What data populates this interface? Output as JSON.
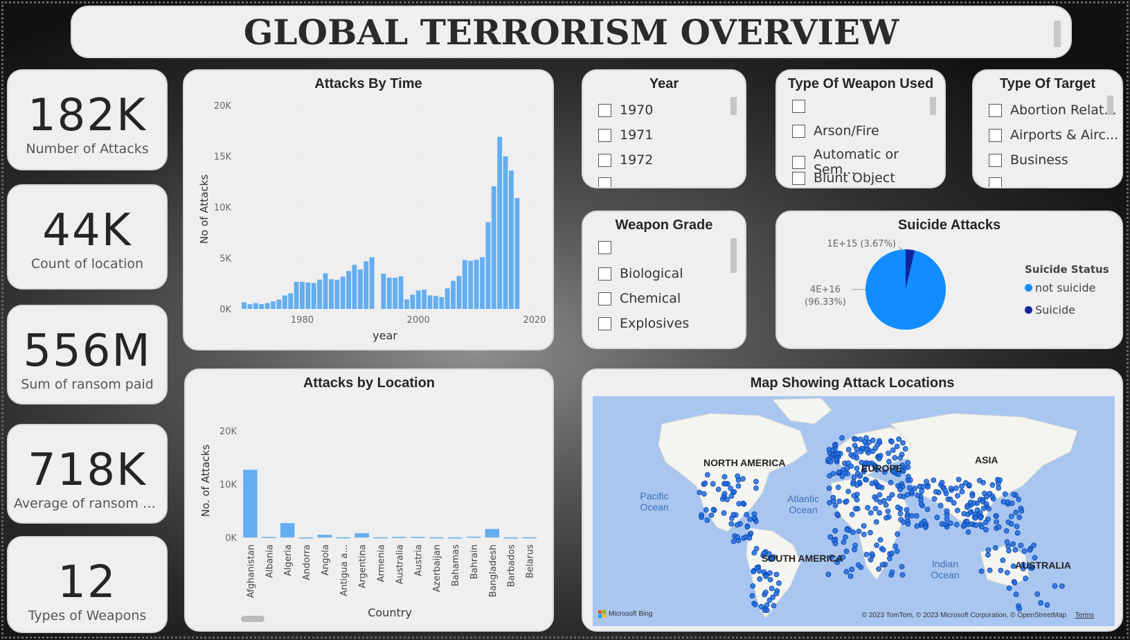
{
  "title": "GLOBAL TERRORISM OVERVIEW",
  "kpis": [
    {
      "value": "182K",
      "label": "Number of Attacks"
    },
    {
      "value": "44K",
      "label": "Count of location"
    },
    {
      "value": "556M",
      "label": "Sum of ransom paid"
    },
    {
      "value": "718K",
      "label": "Average of ransom p..."
    },
    {
      "value": "12",
      "label": "Types of Weapons"
    }
  ],
  "slicers": {
    "year": {
      "title": "Year",
      "items": [
        "1970",
        "1971",
        "1972"
      ]
    },
    "weapon_type": {
      "title": "Type Of Weapon Used",
      "items": [
        "",
        "Arson/Fire",
        "Automatic or Sem...",
        "Blunt Object"
      ]
    },
    "target_type": {
      "title": "Type Of Target",
      "items": [
        "Abortion Relat...",
        "Airports & Airc...",
        "Business"
      ]
    },
    "weapon_grade": {
      "title": "Weapon Grade",
      "items": [
        "",
        "Biological",
        "Chemical",
        "Explosives"
      ]
    }
  },
  "suicide": {
    "title": "Suicide Attacks",
    "legend_title": "Suicide Status",
    "legend": [
      "not suicide",
      "Suicide"
    ],
    "label_small": "1E+15 (3.67%)",
    "label_big_1": "4E+16",
    "label_big_2": "(96.33%)",
    "colors": {
      "not suicide": "#118dff",
      "Suicide": "#12239e"
    }
  },
  "map": {
    "title": "Map Showing Attack Locations",
    "regions": {
      "north_america": "NORTH AMERICA",
      "europe": "EUROPE",
      "asia": "ASIA",
      "south_america": "SOUTH AMERICA",
      "australia": "AUSTRALIA"
    },
    "oceans": {
      "pacific": "Pacific Ocean",
      "atlantic": "Atlantic Ocean",
      "indian": "Indian Ocean"
    },
    "attribution": "© 2023 TomTom, © 2023 Microsoft Corporation, © OpenStreetMap",
    "terms": "Terms",
    "bing": "Microsoft Bing"
  },
  "chart_data": [
    {
      "type": "bar",
      "title": "Attacks By Time",
      "xlabel": "year",
      "ylabel": "No of Attacks",
      "ylim": [
        0,
        20000
      ],
      "yticks": [
        "0K",
        "5K",
        "10K",
        "15K",
        "20K"
      ],
      "xticks": [
        "1980",
        "2000",
        "2020"
      ],
      "x": [
        1970,
        1971,
        1972,
        1973,
        1974,
        1975,
        1976,
        1977,
        1978,
        1979,
        1980,
        1981,
        1982,
        1983,
        1984,
        1985,
        1986,
        1987,
        1988,
        1989,
        1990,
        1991,
        1992,
        1994,
        1995,
        1996,
        1997,
        1998,
        1999,
        2000,
        2001,
        2002,
        2003,
        2004,
        2005,
        2006,
        2007,
        2008,
        2009,
        2010,
        2011,
        2012,
        2013,
        2014,
        2015,
        2016,
        2017
      ],
      "values": [
        650,
        470,
        570,
        470,
        580,
        740,
        920,
        1320,
        1530,
        2660,
        2660,
        2590,
        2550,
        2870,
        3500,
        2920,
        2860,
        3180,
        3720,
        4320,
        3890,
        4680,
        5070,
        3460,
        3080,
        3060,
        3200,
        930,
        1390,
        1810,
        1900,
        1330,
        1280,
        1160,
        2020,
        2760,
        3240,
        4800,
        4720,
        4830,
        5080,
        8520,
        12040,
        16900,
        14970,
        13590,
        10900
      ],
      "color": "#64aef0"
    },
    {
      "type": "bar",
      "title": "Attacks by Location",
      "xlabel": "Country",
      "ylabel": "No. of Attacks",
      "ylim": [
        0,
        20000
      ],
      "yticks": [
        "0K",
        "10K",
        "20K"
      ],
      "categories": [
        "Afghanistan",
        "Albania",
        "Algeria",
        "Andorra",
        "Angola",
        "Antigua a...",
        "Argentina",
        "Armenia",
        "Australia",
        "Austria",
        "Azerbaijan",
        "Bahamas",
        "Bahrain",
        "Bangladesh",
        "Barbados",
        "Belarus"
      ],
      "values": [
        12700,
        100,
        2700,
        5,
        500,
        30,
        800,
        30,
        110,
        110,
        30,
        8,
        150,
        1600,
        5,
        30
      ],
      "color": "#64aef0"
    },
    {
      "type": "pie",
      "title": "Suicide Attacks",
      "categories": [
        "not suicide",
        "Suicide"
      ],
      "values": [
        96.33,
        3.67
      ]
    }
  ]
}
